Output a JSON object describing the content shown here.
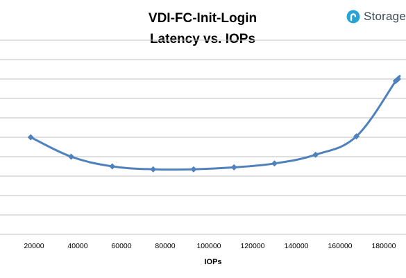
{
  "brand": {
    "logo_text": "Storage",
    "logo_color": "#27a3d6"
  },
  "chart_data": {
    "type": "line",
    "title": [
      "VDI-FC-Init-Login",
      "Latency vs. IOPs"
    ],
    "xlabel": "IOPs",
    "ylabel": "",
    "xlim": [
      0,
      190000
    ],
    "ylim": [
      0,
      10
    ],
    "x_ticks": [
      20000,
      40000,
      60000,
      80000,
      100000,
      120000,
      140000,
      160000,
      180000
    ],
    "y_gridlines": [
      1,
      2,
      3,
      4,
      5,
      6,
      7,
      8,
      9,
      10
    ],
    "grid": "horizontal",
    "series": [
      {
        "color": "#4f81bd",
        "x": [
          18500,
          37000,
          55800,
          74500,
          93000,
          111500,
          130000,
          148800,
          167500,
          185500,
          186500
        ],
        "y": [
          5.0,
          4.0,
          3.5,
          3.35,
          3.35,
          3.45,
          3.65,
          4.1,
          5.05,
          7.9,
          8.0
        ]
      }
    ]
  }
}
